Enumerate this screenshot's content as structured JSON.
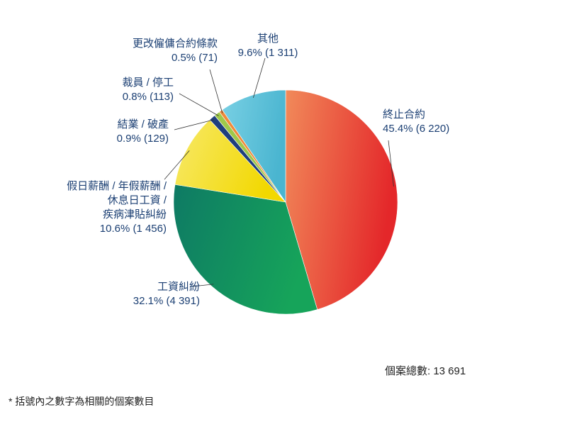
{
  "chart_data": {
    "type": "pie",
    "total_label": "個案總數: 13 691",
    "footnote": "* 括號內之數字為相關的個案數目",
    "slices": [
      {
        "name": "終止合約",
        "label_lines": [
          "終止合約"
        ],
        "percent_label": "45.4% (6 220)",
        "value": 6220,
        "percent": 45.4,
        "color_a": "#f18a5a",
        "color_b": "#e4272a"
      },
      {
        "name": "工資糾紛",
        "label_lines": [
          "工資糾紛"
        ],
        "percent_label": "32.1% (4 391)",
        "value": 4391,
        "percent": 32.1,
        "color_a": "#0e7a64",
        "color_b": "#16a45a"
      },
      {
        "name": "假日薪酬 / 年假薪酬 / 休息日工資 / 疾病津貼糾紛",
        "label_lines": [
          "假日薪酬 / 年假薪酬 /",
          "休息日工資 /",
          "疾病津貼糾紛"
        ],
        "percent_label": "10.6% (1 456)",
        "value": 1456,
        "percent": 10.6,
        "color_a": "#f7e96a",
        "color_b": "#f2d800"
      },
      {
        "name": "結業 / 破產",
        "label_lines": [
          "結業 / 破產"
        ],
        "percent_label": "0.9% (129)",
        "value": 129,
        "percent": 0.9,
        "color_a": "#1f3f7d",
        "color_b": "#1f3f7d"
      },
      {
        "name": "裁員 / 停工",
        "label_lines": [
          "裁員 / 停工"
        ],
        "percent_label": "0.8% (113)",
        "value": 113,
        "percent": 0.8,
        "color_a": "#9fc84a",
        "color_b": "#9fc84a"
      },
      {
        "name": "更改僱傭合約條款",
        "label_lines": [
          "更改僱傭合約條款"
        ],
        "percent_label": "0.5% (71)",
        "value": 71,
        "percent": 0.5,
        "color_a": "#f08a3a",
        "color_b": "#f08a3a"
      },
      {
        "name": "其他",
        "label_lines": [
          "其他"
        ],
        "percent_label": "9.6% (1 311)",
        "value": 1311,
        "percent": 9.6,
        "color_a": "#79d0e4",
        "color_b": "#4ab5d0"
      }
    ]
  }
}
